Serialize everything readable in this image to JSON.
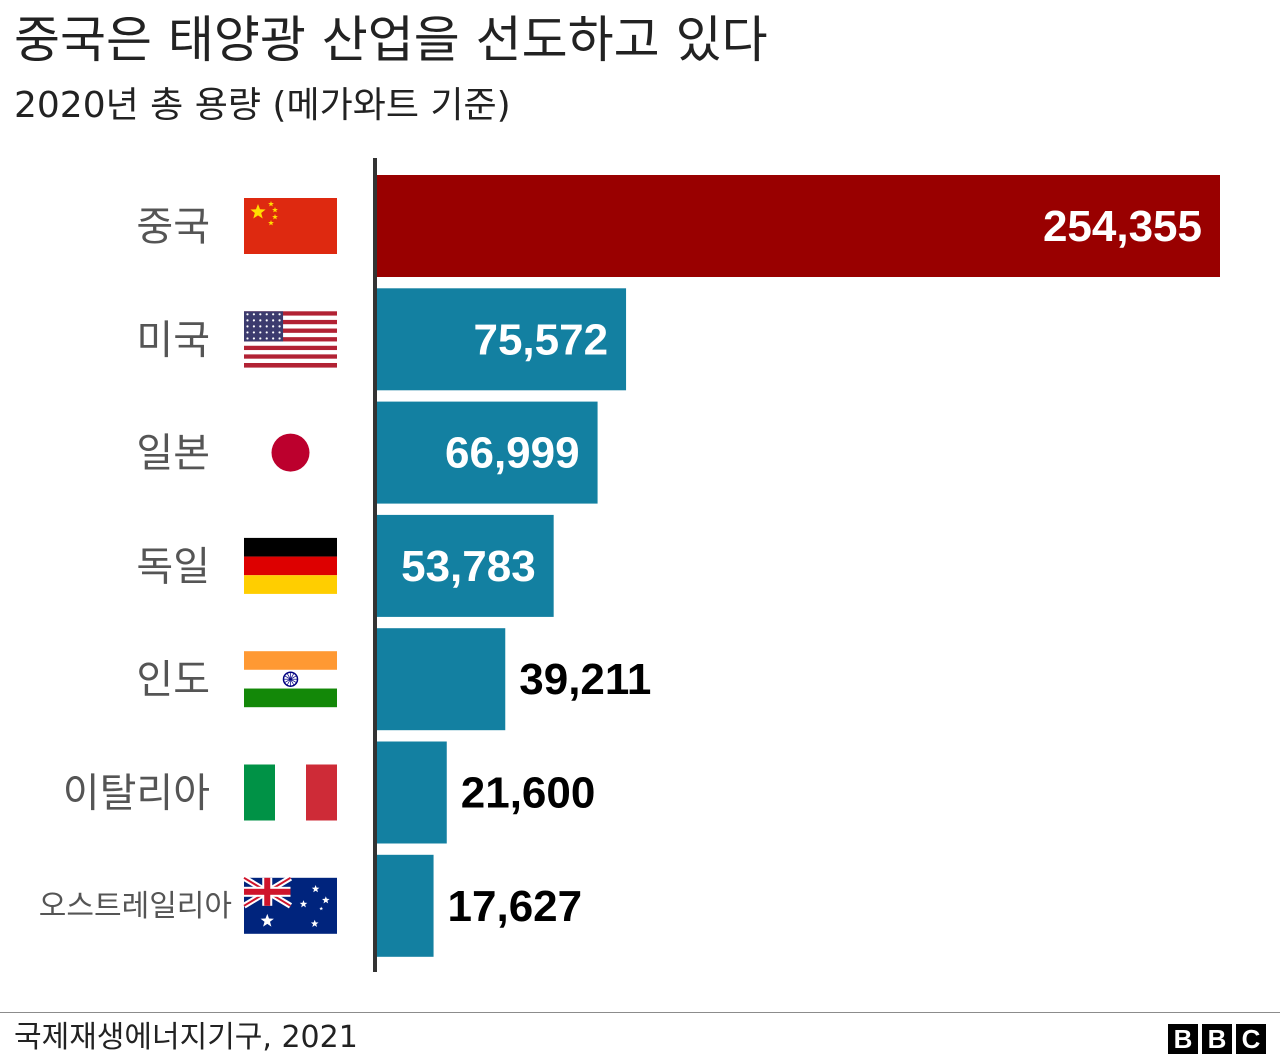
{
  "title": "중국은 태양광 산업을 선도하고 있다",
  "subtitle": "2020년 총 용량 (메가와트 기준)",
  "source": "국제재생에너지기구, 2021",
  "logo": [
    "B",
    "B",
    "C"
  ],
  "colors": {
    "highlight": "#990000",
    "bar": "#1380A1",
    "axis": "#333333"
  },
  "chart_data": {
    "type": "bar",
    "orientation": "horizontal",
    "title": "중국은 태양광 산업을 선도하고 있다",
    "subtitle": "2020년 총 용량 (메가와트 기준)",
    "categories": [
      "중국",
      "미국",
      "일본",
      "독일",
      "인도",
      "이탈리아",
      "오스트레일리아"
    ],
    "values": [
      254355,
      75572,
      66999,
      53783,
      39211,
      21600,
      17627
    ],
    "value_labels": [
      "254,355",
      "75,572",
      "66,999",
      "53,783",
      "39,211",
      "21,600",
      "17,627"
    ],
    "flags": [
      "china-flag",
      "usa-flag",
      "japan-flag",
      "germany-flag",
      "india-flag",
      "italy-flag",
      "australia-flag"
    ],
    "highlight_index": 0,
    "xlim": [
      0,
      254355
    ],
    "grid": false,
    "legend": false
  }
}
